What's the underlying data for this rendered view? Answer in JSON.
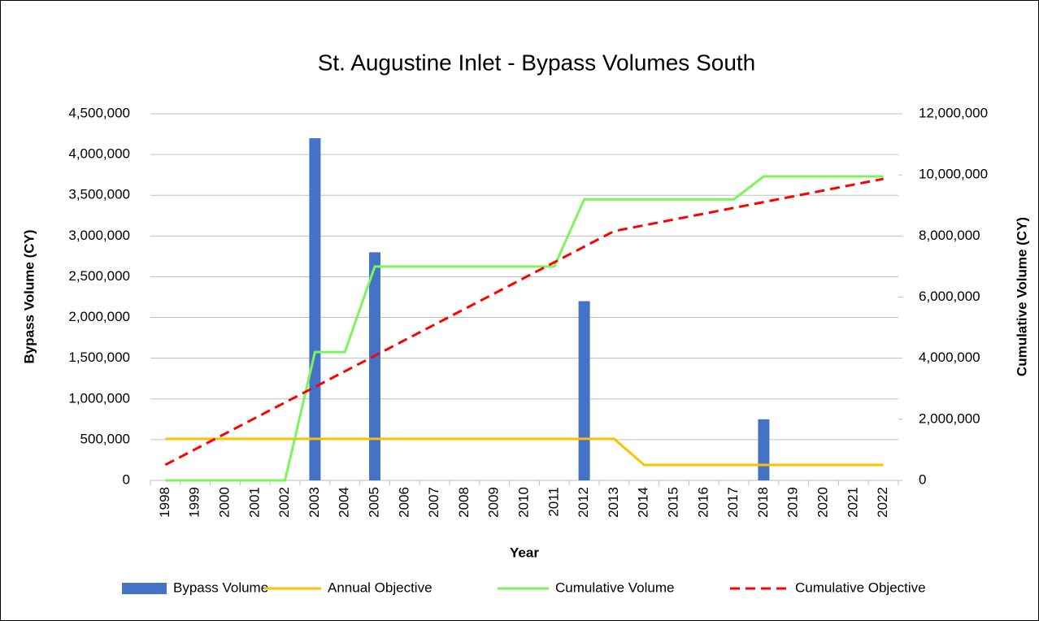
{
  "chart_data": {
    "type": "bar-line",
    "title": "St. Augustine Inlet - Bypass Volumes South",
    "x_label": "Year",
    "y_label": "Bypass Volume (CY)",
    "y2_label": "Cumulative Volume (CY)",
    "categories": [
      "1998",
      "1999",
      "2000",
      "2001",
      "2002",
      "2003",
      "2004",
      "2005",
      "2006",
      "2007",
      "2008",
      "2009",
      "2010",
      "2011",
      "2012",
      "2013",
      "2014",
      "2015",
      "2016",
      "2017",
      "2018",
      "2019",
      "2020",
      "2021",
      "2022"
    ],
    "series": [
      {
        "name": "Bypass Volume",
        "type": "bar",
        "color": "#4472c4",
        "values": [
          0,
          0,
          0,
          0,
          0,
          4200000,
          0,
          2800000,
          0,
          0,
          0,
          0,
          0,
          0,
          2200000,
          0,
          0,
          0,
          0,
          0,
          750000,
          0,
          0,
          0,
          0
        ]
      },
      {
        "name": "Annual Objective",
        "type": "line",
        "color": "#ffc000",
        "values": [
          510000,
          510000,
          510000,
          510000,
          510000,
          510000,
          510000,
          510000,
          510000,
          510000,
          510000,
          510000,
          510000,
          510000,
          510000,
          510000,
          190000,
          190000,
          190000,
          190000,
          190000,
          190000,
          190000,
          190000,
          190000
        ]
      },
      {
        "name": "Cumulative Volume",
        "type": "line",
        "axis": "y2",
        "color": "#7cf55a",
        "values": [
          0,
          0,
          0,
          0,
          0,
          4200000,
          4200000,
          7000000,
          7000000,
          7000000,
          7000000,
          7000000,
          7000000,
          7000000,
          9200000,
          9200000,
          9200000,
          9200000,
          9200000,
          9200000,
          9950000,
          9950000,
          9950000,
          9950000,
          9950000
        ]
      },
      {
        "name": "Cumulative Objective",
        "type": "line",
        "axis": "y2",
        "dashed": true,
        "color": "#ff0000",
        "values": [
          510000,
          1020000,
          1530000,
          2040000,
          2550000,
          3060000,
          3570000,
          4080000,
          4590000,
          5100000,
          5610000,
          6120000,
          6630000,
          7140000,
          7650000,
          8160000,
          8350000,
          8540000,
          8730000,
          8920000,
          9110000,
          9300000,
          9490000,
          9680000,
          9870000
        ]
      }
    ],
    "ylim": [
      0,
      4500000
    ],
    "yticks": [
      0,
      {
        "value": 500000,
        "label": "500,000"
      },
      {
        "value": 1000000,
        "label": "1,000,000"
      },
      {
        "value": 1500000,
        "label": "1,500,000"
      },
      {
        "value": 2000000,
        "label": "2,000,000"
      },
      {
        "value": 2500000,
        "label": "2,500,000"
      },
      {
        "value": 3000000,
        "label": "3,000,000"
      },
      {
        "value": 3500000,
        "label": "3,500,000"
      },
      {
        "value": 4000000,
        "label": "4,000,000"
      },
      {
        "value": 4500000,
        "label": "4,500,000"
      }
    ],
    "y2lim": [
      0,
      12000000
    ],
    "y2ticks": [
      0,
      {
        "value": 2000000,
        "label": "2,000,000"
      },
      {
        "value": 4000000,
        "label": "4,000,000"
      },
      {
        "value": 6000000,
        "label": "6,000,000"
      },
      {
        "value": 8000000,
        "label": "8,000,000"
      },
      {
        "value": 10000000,
        "label": "10,000,000"
      },
      {
        "value": 12000000,
        "label": "12,000,000"
      }
    ],
    "grid": true,
    "legend": "bottom"
  }
}
